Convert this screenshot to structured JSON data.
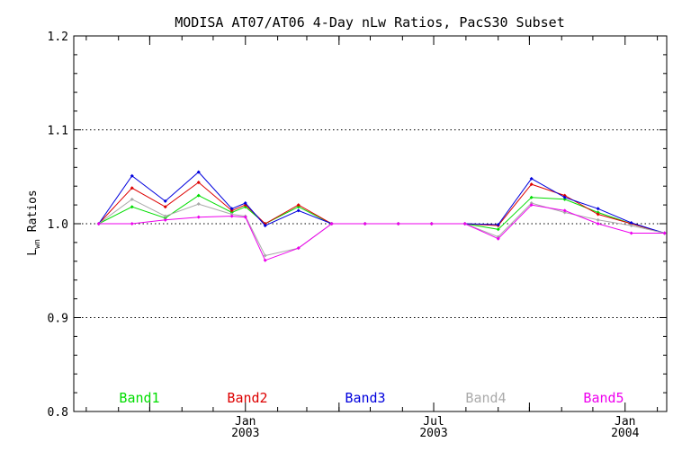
{
  "chart_data": {
    "type": "line",
    "title": "MODISA AT07/AT06 4-Day nLw Ratios, PacS30 Subset",
    "ylabel_main": "L",
    "ylabel_sub": "wn",
    "ylabel_rest": " Ratios",
    "ylim": [
      0.8,
      1.2
    ],
    "yticks": [
      "0.8",
      "0.9",
      "1.0",
      "1.1",
      "1.2"
    ],
    "ygrid": [
      0.9,
      1.0,
      1.1
    ],
    "xlim": [
      "2002-07-20",
      "2004-02-10"
    ],
    "xticks": [
      {
        "date": "2003-01-01",
        "month": "Jan",
        "year": "2003"
      },
      {
        "date": "2003-07-01",
        "month": "Jul",
        "year": "2003"
      },
      {
        "date": "2004-01-01",
        "month": "Jan",
        "year": "2004"
      }
    ],
    "x": [
      "2002-08-13",
      "2002-09-14",
      "2002-10-16",
      "2002-11-17",
      "2002-12-19",
      "2003-01-01",
      "2003-01-20",
      "2003-02-21",
      "2003-03-25",
      "2003-04-26",
      "2003-05-28",
      "2003-06-29",
      "2003-07-31",
      "2003-09-01",
      "2003-10-03",
      "2003-11-04",
      "2003-12-06",
      "2004-01-07",
      "2004-02-08"
    ],
    "series": [
      {
        "name": "Band1",
        "color": "#00dd00",
        "values": [
          1.0,
          1.018,
          1.006,
          1.03,
          1.012,
          1.018,
          1.0,
          1.018,
          1.0,
          1.0,
          1.0,
          1.0,
          1.0,
          0.994,
          1.028,
          1.026,
          1.012,
          1.0,
          0.99
        ]
      },
      {
        "name": "Band2",
        "color": "#dd0000",
        "values": [
          1.0,
          1.038,
          1.018,
          1.044,
          1.014,
          1.02,
          1.0,
          1.02,
          1.0,
          1.0,
          1.0,
          1.0,
          1.0,
          0.998,
          1.042,
          1.03,
          1.01,
          1.0,
          0.99
        ]
      },
      {
        "name": "Band3",
        "color": "#0000dd",
        "values": [
          1.0,
          1.051,
          1.024,
          1.055,
          1.016,
          1.022,
          0.998,
          1.014,
          1.0,
          1.0,
          1.0,
          1.0,
          1.0,
          0.999,
          1.048,
          1.028,
          1.016,
          1.001,
          0.99
        ]
      },
      {
        "name": "Band4",
        "color": "#aaaaaa",
        "values": [
          1.0,
          1.026,
          1.008,
          1.021,
          1.01,
          1.008,
          0.966,
          0.974,
          1.0,
          1.0,
          1.0,
          1.0,
          1.0,
          0.986,
          1.022,
          1.012,
          1.004,
          0.998,
          0.99
        ]
      },
      {
        "name": "Band5",
        "color": "#ee00ee",
        "values": [
          1.0,
          1.0,
          1.004,
          1.007,
          1.008,
          1.007,
          0.961,
          0.974,
          1.0,
          1.0,
          1.0,
          1.0,
          1.0,
          0.984,
          1.02,
          1.014,
          1.0,
          0.99,
          0.99
        ]
      }
    ],
    "legend_placement": "bottom"
  }
}
